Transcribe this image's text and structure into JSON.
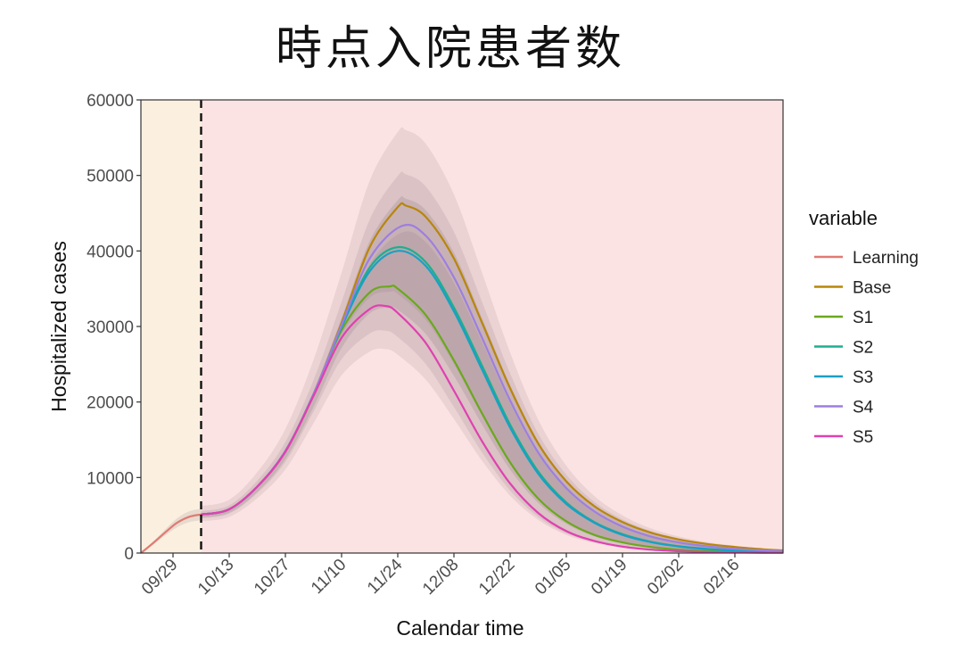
{
  "title": "時点入院患者数",
  "chart_data": {
    "type": "line",
    "title": "時点入院患者数",
    "xlabel": "Calendar time",
    "ylabel": "Hospitalized cases",
    "ylim": [
      0,
      60000
    ],
    "yticks": [
      0,
      10000,
      20000,
      30000,
      40000,
      50000,
      60000
    ],
    "xlim": [
      "2020-09-21",
      "2021-02-28"
    ],
    "xticks": [
      "09/29",
      "10/13",
      "10/27",
      "11/10",
      "11/24",
      "12/08",
      "12/22",
      "01/05",
      "01/19",
      "02/02",
      "02/16"
    ],
    "xtick_dates": [
      "2020-09-29",
      "2020-10-13",
      "2020-10-27",
      "2020-11-10",
      "2020-11-24",
      "2020-12-08",
      "2020-12-22",
      "2021-01-05",
      "2021-01-19",
      "2021-02-02",
      "2021-02-16"
    ],
    "learning_period_end": "2020-10-06",
    "grid": false,
    "legend": {
      "title": "variable",
      "position": "right"
    },
    "series": [
      {
        "name": "Learning",
        "color": "#E07B73",
        "points": [
          [
            "2020-09-21",
            0
          ],
          [
            "2020-09-24",
            1300
          ],
          [
            "2020-09-27",
            2700
          ],
          [
            "2020-09-30",
            4000
          ],
          [
            "2020-10-03",
            4800
          ],
          [
            "2020-10-06",
            5100
          ]
        ]
      },
      {
        "name": "Base",
        "color": "#B8860B",
        "peak": 46000,
        "peak_date": "2020-11-26",
        "points": [
          [
            "2020-10-06",
            5100
          ],
          [
            "2020-10-13",
            5800
          ],
          [
            "2020-10-20",
            8800
          ],
          [
            "2020-10-27",
            13500
          ],
          [
            "2020-11-03",
            21000
          ],
          [
            "2020-11-10",
            30500
          ],
          [
            "2020-11-17",
            40500
          ],
          [
            "2020-11-24",
            45800
          ],
          [
            "2020-11-26",
            46000
          ],
          [
            "2020-12-01",
            44500
          ],
          [
            "2020-12-08",
            39000
          ],
          [
            "2020-12-15",
            30500
          ],
          [
            "2020-12-22",
            21800
          ],
          [
            "2020-12-29",
            14500
          ],
          [
            "2021-01-05",
            9500
          ],
          [
            "2021-01-12",
            6200
          ],
          [
            "2021-01-19",
            4100
          ],
          [
            "2021-01-26",
            2700
          ],
          [
            "2021-02-02",
            1800
          ],
          [
            "2021-02-09",
            1200
          ],
          [
            "2021-02-16",
            800
          ],
          [
            "2021-02-23",
            500
          ],
          [
            "2021-02-28",
            350
          ]
        ]
      },
      {
        "name": "S1",
        "color": "#6BA81E",
        "peak": 35300,
        "peak_date": "2020-11-22",
        "points": [
          [
            "2020-10-06",
            5100
          ],
          [
            "2020-10-13",
            5800
          ],
          [
            "2020-10-20",
            8800
          ],
          [
            "2020-10-27",
            13500
          ],
          [
            "2020-11-03",
            21000
          ],
          [
            "2020-11-10",
            29500
          ],
          [
            "2020-11-17",
            34500
          ],
          [
            "2020-11-22",
            35300
          ],
          [
            "2020-11-24",
            35000
          ],
          [
            "2020-12-01",
            31500
          ],
          [
            "2020-12-08",
            25500
          ],
          [
            "2020-12-15",
            18500
          ],
          [
            "2020-12-22",
            12000
          ],
          [
            "2020-12-29",
            7200
          ],
          [
            "2021-01-05",
            4200
          ],
          [
            "2021-01-12",
            2400
          ],
          [
            "2021-01-19",
            1400
          ],
          [
            "2021-01-26",
            800
          ],
          [
            "2021-02-02",
            450
          ],
          [
            "2021-02-09",
            250
          ],
          [
            "2021-02-16",
            150
          ],
          [
            "2021-02-23",
            100
          ],
          [
            "2021-02-28",
            80
          ]
        ]
      },
      {
        "name": "S2",
        "color": "#1FAE8F",
        "peak": 40500,
        "peak_date": "2020-11-24",
        "points": [
          [
            "2020-10-06",
            5100
          ],
          [
            "2020-10-13",
            5800
          ],
          [
            "2020-10-20",
            8800
          ],
          [
            "2020-10-27",
            13500
          ],
          [
            "2020-11-03",
            21000
          ],
          [
            "2020-11-10",
            30000
          ],
          [
            "2020-11-17",
            37800
          ],
          [
            "2020-11-24",
            40500
          ],
          [
            "2020-12-01",
            38500
          ],
          [
            "2020-12-08",
            32500
          ],
          [
            "2020-12-15",
            24800
          ],
          [
            "2020-12-22",
            17000
          ],
          [
            "2020-12-29",
            10800
          ],
          [
            "2021-01-05",
            6700
          ],
          [
            "2021-01-12",
            4100
          ],
          [
            "2021-01-19",
            2500
          ],
          [
            "2021-01-26",
            1500
          ],
          [
            "2021-02-02",
            900
          ],
          [
            "2021-02-09",
            550
          ],
          [
            "2021-02-16",
            330
          ],
          [
            "2021-02-23",
            200
          ],
          [
            "2021-02-28",
            150
          ]
        ]
      },
      {
        "name": "S3",
        "color": "#1AA0C4",
        "peak": 40000,
        "peak_date": "2020-11-24",
        "points": [
          [
            "2020-10-06",
            5100
          ],
          [
            "2020-10-13",
            5800
          ],
          [
            "2020-10-20",
            8800
          ],
          [
            "2020-10-27",
            13500
          ],
          [
            "2020-11-03",
            21000
          ],
          [
            "2020-11-10",
            29900
          ],
          [
            "2020-11-17",
            37300
          ],
          [
            "2020-11-24",
            40000
          ],
          [
            "2020-12-01",
            38000
          ],
          [
            "2020-12-08",
            32000
          ],
          [
            "2020-12-15",
            24300
          ],
          [
            "2020-12-22",
            16600
          ],
          [
            "2020-12-29",
            10500
          ],
          [
            "2021-01-05",
            6500
          ],
          [
            "2021-01-12",
            4000
          ],
          [
            "2021-01-19",
            2400
          ],
          [
            "2021-01-26",
            1450
          ],
          [
            "2021-02-02",
            870
          ],
          [
            "2021-02-09",
            520
          ],
          [
            "2021-02-16",
            320
          ],
          [
            "2021-02-23",
            200
          ],
          [
            "2021-02-28",
            140
          ]
        ]
      },
      {
        "name": "S4",
        "color": "#9C7FE0",
        "peak": 43300,
        "peak_date": "2020-11-25",
        "points": [
          [
            "2020-10-06",
            5100
          ],
          [
            "2020-10-13",
            5800
          ],
          [
            "2020-10-20",
            8800
          ],
          [
            "2020-10-27",
            13500
          ],
          [
            "2020-11-03",
            21000
          ],
          [
            "2020-11-10",
            30200
          ],
          [
            "2020-11-17",
            39000
          ],
          [
            "2020-11-25",
            43300
          ],
          [
            "2020-12-01",
            42000
          ],
          [
            "2020-12-08",
            36500
          ],
          [
            "2020-12-15",
            28500
          ],
          [
            "2020-12-22",
            20200
          ],
          [
            "2020-12-29",
            13300
          ],
          [
            "2021-01-05",
            8600
          ],
          [
            "2021-01-12",
            5500
          ],
          [
            "2021-01-19",
            3500
          ],
          [
            "2021-01-26",
            2200
          ],
          [
            "2021-02-02",
            1400
          ],
          [
            "2021-02-09",
            900
          ],
          [
            "2021-02-16",
            560
          ],
          [
            "2021-02-23",
            350
          ],
          [
            "2021-02-28",
            250
          ]
        ]
      },
      {
        "name": "S5",
        "color": "#E040B0",
        "peak": 32700,
        "peak_date": "2020-11-21",
        "points": [
          [
            "2020-10-06",
            5100
          ],
          [
            "2020-10-13",
            5800
          ],
          [
            "2020-10-20",
            8800
          ],
          [
            "2020-10-27",
            13400
          ],
          [
            "2020-11-03",
            20800
          ],
          [
            "2020-11-10",
            28500
          ],
          [
            "2020-11-17",
            32300
          ],
          [
            "2020-11-21",
            32700
          ],
          [
            "2020-11-24",
            31800
          ],
          [
            "2020-12-01",
            27800
          ],
          [
            "2020-12-08",
            21500
          ],
          [
            "2020-12-15",
            14800
          ],
          [
            "2020-12-22",
            9200
          ],
          [
            "2020-12-29",
            5300
          ],
          [
            "2021-01-05",
            2900
          ],
          [
            "2021-01-12",
            1600
          ],
          [
            "2021-01-19",
            850
          ],
          [
            "2021-01-26",
            450
          ],
          [
            "2021-02-02",
            250
          ],
          [
            "2021-02-09",
            140
          ],
          [
            "2021-02-16",
            80
          ],
          [
            "2021-02-23",
            50
          ],
          [
            "2021-02-28",
            30
          ]
        ]
      }
    ],
    "uncertainty_band": {
      "outer_peak": 56000,
      "inner_peak": 47000,
      "low_peak": 27000
    },
    "colors": {
      "learning_bg": "#FBF0E0",
      "forecast_bg": "#FCE3E3",
      "band": "#7A6470",
      "axis": "#333333"
    }
  }
}
